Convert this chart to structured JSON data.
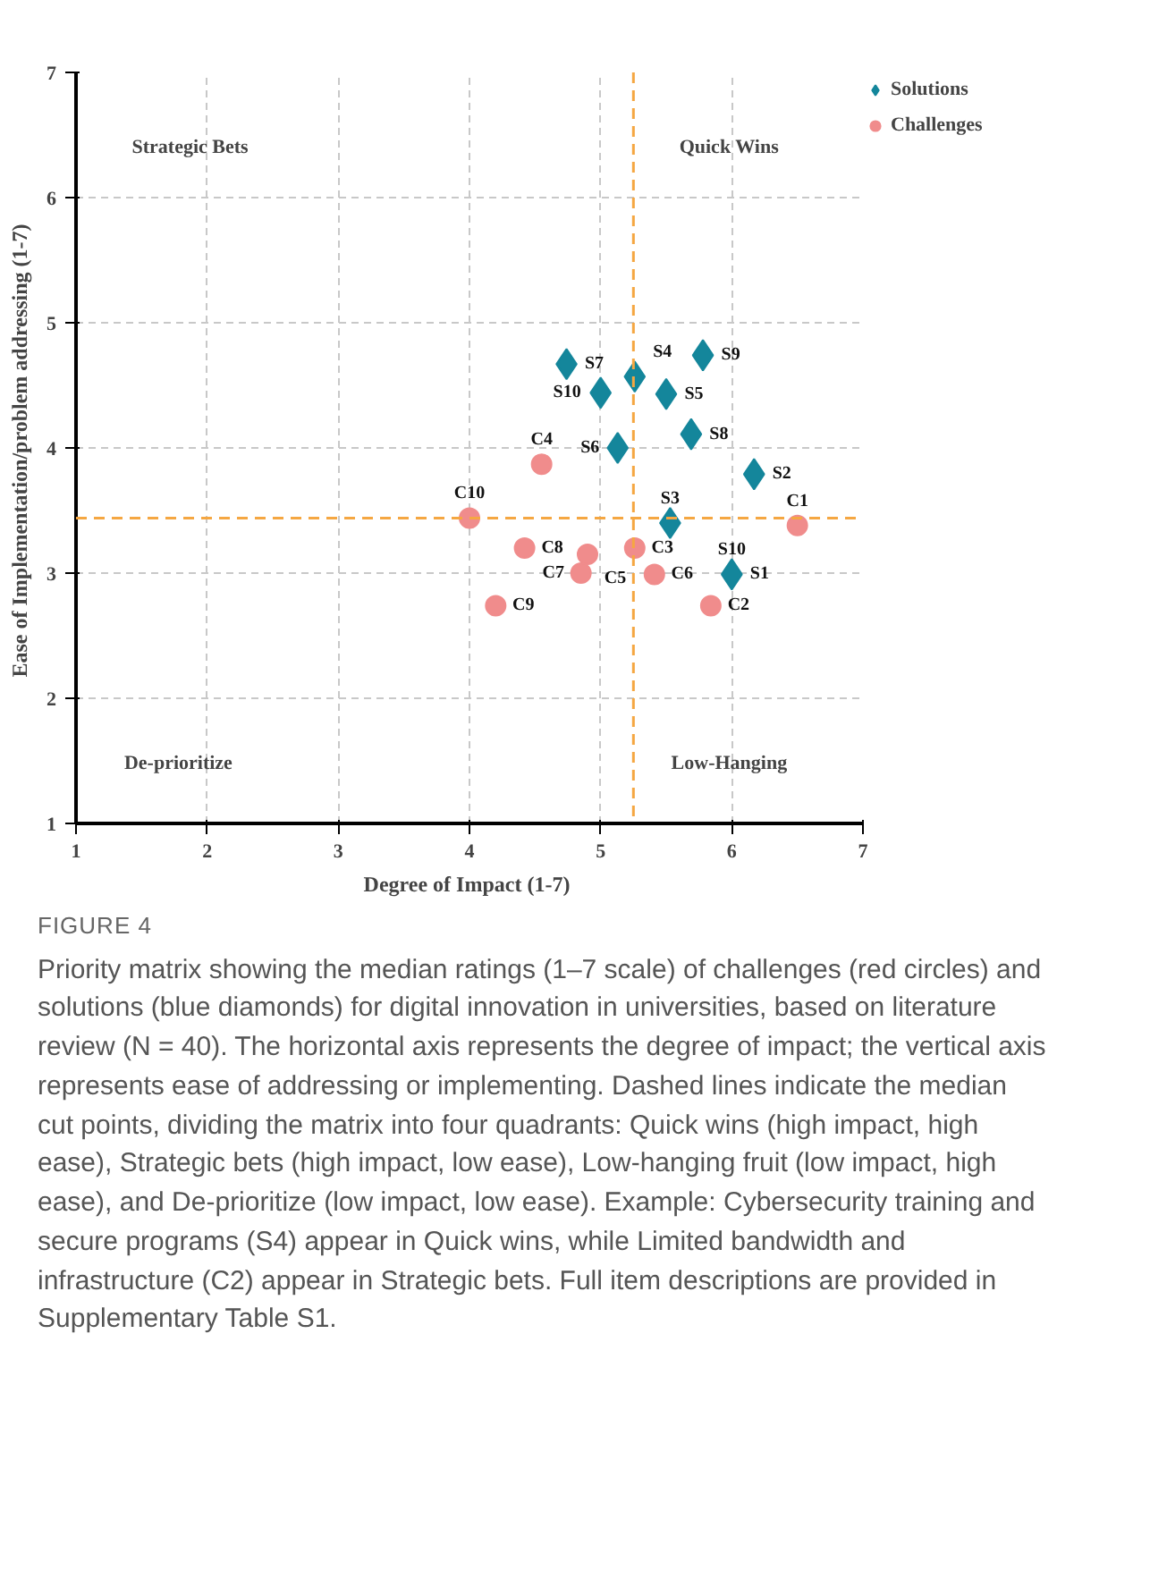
{
  "chart_data": {
    "type": "scatter",
    "title": "FIGURE 4",
    "subtitle": "Priority matrix showing the median ratings (1–7 scale) of challenges (red circles) and solutions (blue diamonds) for digital innovation in universities, based on literature review (N = 40). The horizontal axis represents the degree of impact; the vertical axis represents ease of addressing or implementing. Dashed lines indicate the median cut points, dividing the matrix into four quadrants: Quick wins (high impact, high ease), Strategic bets (high impact, low ease), Low-hanging fruit (low impact, high ease), and De-prioritize (low impact, low ease). Example: Cybersecurity training and secure programs (S4) appear in Quick wins, while Limited bandwidth and infrastructure (C2) appear in Strategic bets. Full item descriptions are provided in Supplementary Table S1.",
    "xlabel": "Degree of Impact  (1-7)",
    "ylabel": "Ease of Implementation/problem addressing  (1-7)",
    "xlim": [
      1,
      7
    ],
    "ylim": [
      1,
      7
    ],
    "xticks": [
      1,
      2,
      3,
      4,
      5,
      6,
      7
    ],
    "yticks": [
      1,
      2,
      3,
      4,
      5,
      6,
      7
    ],
    "grid": true,
    "legend": "top right",
    "series": [
      {
        "name": "Solutions",
        "color": "#14869b",
        "marker": "diamond",
        "x": [
          4.74,
          5.0,
          5.26,
          5.5,
          5.78,
          5.13,
          5.69,
          6.17,
          5.53,
          6.0
        ],
        "values": [
          4.67,
          4.44,
          4.57,
          4.43,
          4.74,
          4.0,
          4.11,
          3.79,
          3.4,
          2.99
        ]
      },
      {
        "name": "Challenges",
        "color": "#f08c8c",
        "marker": "circle",
        "x": [
          4.55,
          4.0,
          4.42,
          4.9,
          4.85,
          5.26,
          5.41,
          5.84,
          4.2,
          6.5
        ],
        "values": [
          3.87,
          3.44,
          3.2,
          3.15,
          3.0,
          3.2,
          2.99,
          2.74,
          2.74,
          3.38
        ]
      }
    ],
    "ref_lines": [
      {
        "axis": "x",
        "value": 5.25,
        "color": "#f5a742",
        "line_style": "dashed"
      },
      {
        "axis": "y",
        "value": 3.44,
        "color": "#f5a742",
        "line_style": "dashed"
      }
    ],
    "annotations": [
      "Strategic Bets",
      "Quick Wins",
      "De-prioritize",
      "Low-Hanging",
      {
        "text": "S7",
        "x": 4.74,
        "y": 4.67
      },
      {
        "text": "S4",
        "x": 5.26,
        "y": 4.57
      },
      {
        "text": "S10",
        "x": 5.0,
        "y": 4.44
      },
      {
        "text": "S5",
        "x": 5.5,
        "y": 4.43
      },
      {
        "text": "S9",
        "x": 5.78,
        "y": 4.74
      },
      {
        "text": "S6",
        "x": 5.13,
        "y": 4.0
      },
      {
        "text": "S8",
        "x": 5.69,
        "y": 4.11
      },
      {
        "text": "S2",
        "x": 6.17,
        "y": 3.79
      },
      {
        "text": "S3",
        "x": 5.53,
        "y": 3.4
      },
      {
        "text": "S1",
        "x": 6.0,
        "y": 2.99
      },
      {
        "text": "S10",
        "x": 6.0,
        "y": 2.99
      },
      {
        "text": "C4",
        "x": 4.55,
        "y": 3.87
      },
      {
        "text": "C10",
        "x": 4.0,
        "y": 3.44
      },
      {
        "text": "C8",
        "x": 4.42,
        "y": 3.2
      },
      {
        "text": "C5",
        "x": 4.9,
        "y": 3.15
      },
      {
        "text": "C3",
        "x": 5.26,
        "y": 3.2
      },
      {
        "text": "C7",
        "x": 4.85,
        "y": 3.0
      },
      {
        "text": "C6",
        "x": 5.41,
        "y": 2.99
      },
      {
        "text": "C2",
        "x": 5.84,
        "y": 2.74
      },
      {
        "text": "C9",
        "x": 4.2,
        "y": 2.74
      },
      {
        "text": "C1",
        "x": 6.5,
        "y": 3.38
      }
    ]
  }
}
